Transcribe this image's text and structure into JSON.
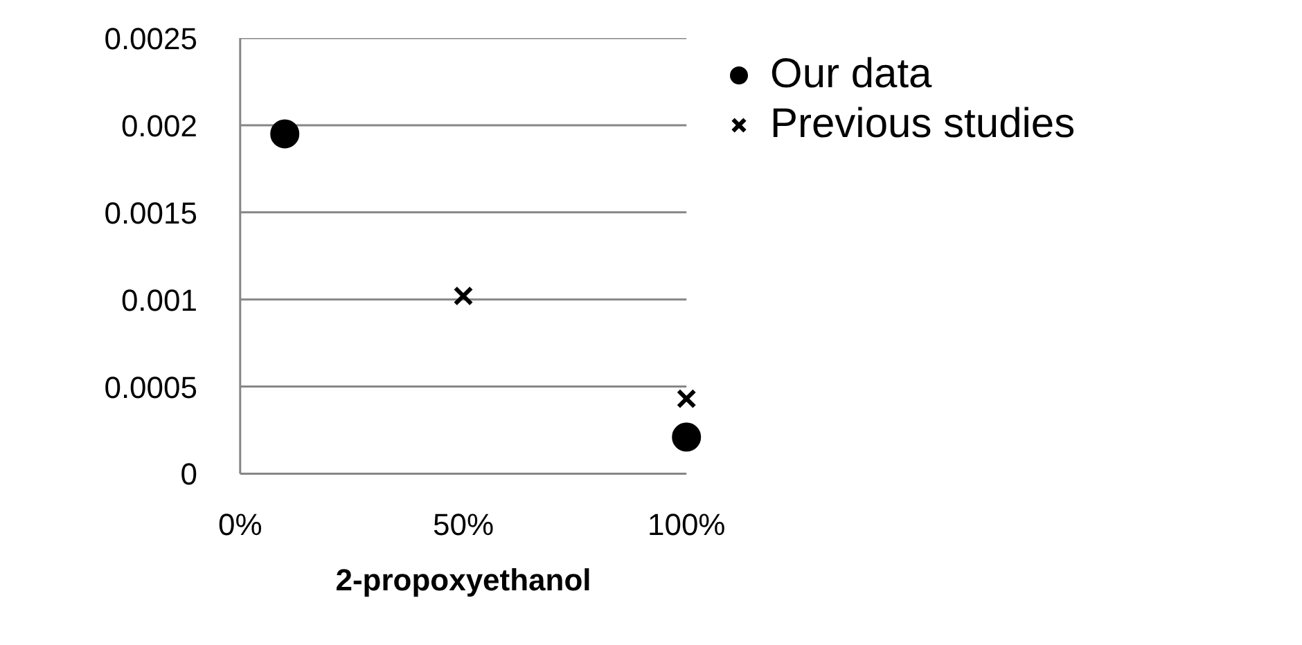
{
  "chart_data": {
    "type": "scatter",
    "xlabel": "2-propoxyethanol",
    "xlim": [
      0,
      100
    ],
    "xticks": [
      {
        "value": 0,
        "label": "0%"
      },
      {
        "value": 50,
        "label": "50%"
      },
      {
        "value": 100,
        "label": "100%"
      }
    ],
    "ylim": [
      0,
      0.0025
    ],
    "yticks": [
      0,
      0.0005,
      0.001,
      0.0015,
      0.002,
      0.0025
    ],
    "grid": "y",
    "legend": "right",
    "series": [
      {
        "name": "Our data",
        "color": "#000000",
        "marker": "circle",
        "x": [
          10,
          100
        ],
        "values": [
          0.00195,
          0.00021
        ]
      },
      {
        "name": "Previous studies",
        "color": "#000000",
        "marker": "cross",
        "x": [
          50,
          100
        ],
        "values": [
          0.00102,
          0.00043
        ]
      }
    ]
  }
}
